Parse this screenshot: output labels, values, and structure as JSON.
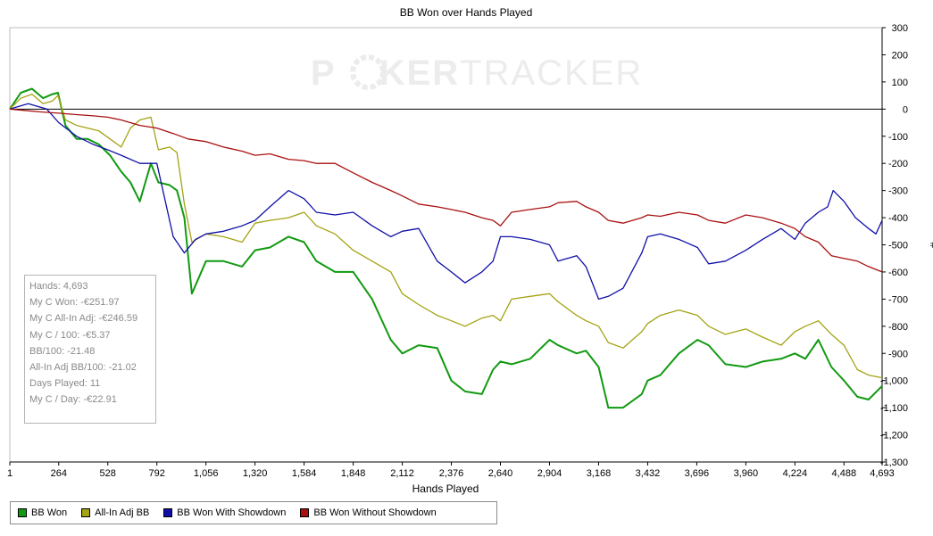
{
  "chart_data": {
    "type": "line",
    "title": "BB Won over Hands Played",
    "xlabel": "Hands Played",
    "ylabel": "#",
    "xlim": [
      1,
      4693
    ],
    "ylim": [
      -1300,
      300
    ],
    "x_ticks": [
      1,
      264,
      528,
      792,
      1056,
      1320,
      1584,
      1848,
      2112,
      2376,
      2640,
      2904,
      3168,
      3432,
      3696,
      3960,
      4224,
      4488,
      4693
    ],
    "x_tick_labels": [
      "1",
      "264",
      "528",
      "792",
      "1,056",
      "1,320",
      "1,584",
      "1,848",
      "2,112",
      "2,376",
      "2,640",
      "2,904",
      "3,168",
      "3,432",
      "3,696",
      "3,960",
      "4,224",
      "4,488",
      "4,693"
    ],
    "y_ticks": [
      300,
      200,
      100,
      0,
      -100,
      -200,
      -300,
      -400,
      -500,
      -600,
      -700,
      -800,
      -900,
      -1000,
      -1100,
      -1200,
      -1300
    ],
    "y_tick_labels": [
      "300",
      "200",
      "100",
      "0",
      "-100",
      "-200",
      "-300",
      "-400",
      "-500",
      "-600",
      "-700",
      "-800",
      "-900",
      "-1,000",
      "-1,100",
      "-1,200",
      "-1,300"
    ],
    "grid": false,
    "legend_position": "bottom-left",
    "series": [
      {
        "name": "BB Won",
        "color": "#119a11",
        "x": [
          1,
          60,
          120,
          180,
          230,
          260,
          300,
          360,
          420,
          480,
          540,
          600,
          650,
          700,
          760,
          800,
          860,
          900,
          940,
          980,
          1056,
          1150,
          1250,
          1320,
          1400,
          1500,
          1584,
          1650,
          1750,
          1848,
          1950,
          2050,
          2112,
          2200,
          2300,
          2376,
          2450,
          2540,
          2600,
          2640,
          2700,
          2800,
          2904,
          2950,
          3050,
          3100,
          3168,
          3220,
          3300,
          3400,
          3432,
          3500,
          3600,
          3700,
          3760,
          3850,
          3960,
          4050,
          4150,
          4224,
          4280,
          4350,
          4420,
          4488,
          4560,
          4620,
          4693
        ],
        "y": [
          0,
          60,
          75,
          40,
          55,
          60,
          -60,
          -110,
          -110,
          -130,
          -170,
          -230,
          -270,
          -340,
          -200,
          -270,
          -280,
          -300,
          -400,
          -680,
          -560,
          -560,
          -580,
          -520,
          -510,
          -470,
          -490,
          -560,
          -600,
          -600,
          -700,
          -850,
          -900,
          -870,
          -880,
          -1000,
          -1040,
          -1050,
          -960,
          -930,
          -940,
          -920,
          -850,
          -870,
          -900,
          -890,
          -950,
          -1100,
          -1100,
          -1050,
          -1000,
          -980,
          -900,
          -850,
          -870,
          -940,
          -950,
          -930,
          -920,
          -900,
          -920,
          -850,
          -950,
          -1000,
          -1060,
          -1070,
          -1020
        ]
      },
      {
        "name": "All-In Adj BB",
        "color": "#a3a313",
        "x": [
          1,
          60,
          120,
          180,
          230,
          260,
          300,
          360,
          420,
          480,
          540,
          600,
          650,
          700,
          760,
          800,
          860,
          900,
          940,
          980,
          1056,
          1150,
          1250,
          1320,
          1400,
          1500,
          1584,
          1650,
          1750,
          1848,
          1950,
          2050,
          2112,
          2200,
          2300,
          2376,
          2450,
          2540,
          2600,
          2640,
          2700,
          2800,
          2904,
          2950,
          3050,
          3100,
          3168,
          3220,
          3300,
          3400,
          3432,
          3500,
          3600,
          3700,
          3760,
          3850,
          3960,
          4050,
          4150,
          4224,
          4280,
          4350,
          4420,
          4488,
          4560,
          4620,
          4693
        ],
        "y": [
          0,
          40,
          55,
          20,
          30,
          50,
          -40,
          -60,
          -70,
          -80,
          -110,
          -140,
          -70,
          -40,
          -30,
          -150,
          -140,
          -160,
          -350,
          -490,
          -460,
          -470,
          -490,
          -420,
          -410,
          -400,
          -380,
          -430,
          -460,
          -520,
          -560,
          -600,
          -680,
          -720,
          -760,
          -780,
          -800,
          -770,
          -760,
          -780,
          -700,
          -690,
          -680,
          -710,
          -760,
          -780,
          -800,
          -860,
          -880,
          -820,
          -790,
          -760,
          -740,
          -760,
          -800,
          -830,
          -810,
          -840,
          -870,
          -820,
          -800,
          -780,
          -830,
          -870,
          -960,
          -980,
          -990
        ]
      },
      {
        "name": "BB Won With Showdown",
        "color": "#1010a8",
        "x": [
          1,
          100,
          200,
          264,
          360,
          450,
          528,
          600,
          700,
          792,
          880,
          940,
          1000,
          1056,
          1150,
          1250,
          1320,
          1400,
          1450,
          1500,
          1584,
          1650,
          1750,
          1848,
          1950,
          2050,
          2112,
          2200,
          2300,
          2376,
          2450,
          2540,
          2600,
          2640,
          2700,
          2800,
          2904,
          2950,
          3050,
          3100,
          3168,
          3220,
          3300,
          3400,
          3432,
          3500,
          3600,
          3700,
          3760,
          3850,
          3960,
          4050,
          4150,
          4224,
          4280,
          4350,
          4400,
          4430,
          4488,
          4550,
          4620,
          4660,
          4693
        ],
        "y": [
          0,
          20,
          0,
          -50,
          -100,
          -130,
          -150,
          -170,
          -200,
          -200,
          -470,
          -530,
          -480,
          -460,
          -450,
          -430,
          -410,
          -360,
          -330,
          -300,
          -330,
          -380,
          -390,
          -380,
          -430,
          -470,
          -450,
          -440,
          -560,
          -600,
          -640,
          -600,
          -560,
          -470,
          -470,
          -480,
          -500,
          -560,
          -540,
          -580,
          -700,
          -690,
          -660,
          -530,
          -470,
          -460,
          -480,
          -510,
          -570,
          -560,
          -520,
          -480,
          -440,
          -480,
          -420,
          -380,
          -360,
          -300,
          -340,
          -400,
          -440,
          -460,
          -410
        ]
      },
      {
        "name": "BB Won Without Showdown",
        "color": "#a81010",
        "x": [
          1,
          80,
          160,
          264,
          350,
          450,
          528,
          600,
          700,
          792,
          880,
          960,
          1056,
          1150,
          1250,
          1320,
          1400,
          1500,
          1584,
          1650,
          1750,
          1848,
          1950,
          2050,
          2112,
          2200,
          2300,
          2376,
          2450,
          2540,
          2600,
          2640,
          2700,
          2800,
          2904,
          2950,
          3050,
          3100,
          3168,
          3220,
          3300,
          3400,
          3432,
          3500,
          3600,
          3700,
          3760,
          3850,
          3960,
          4050,
          4150,
          4224,
          4280,
          4350,
          4420,
          4488,
          4560,
          4620,
          4693
        ],
        "y": [
          0,
          -5,
          -10,
          -15,
          -20,
          -25,
          -30,
          -40,
          -60,
          -70,
          -90,
          -110,
          -120,
          -140,
          -155,
          -170,
          -165,
          -185,
          -190,
          -200,
          -200,
          -235,
          -270,
          -300,
          -320,
          -350,
          -360,
          -370,
          -380,
          -400,
          -410,
          -430,
          -380,
          -370,
          -360,
          -345,
          -340,
          -360,
          -380,
          -410,
          -420,
          -400,
          -390,
          -395,
          -380,
          -390,
          -410,
          -420,
          -390,
          -400,
          -420,
          -440,
          -470,
          -490,
          -540,
          -550,
          -560,
          -580,
          -600
        ]
      }
    ]
  },
  "watermark": {
    "part1": "P",
    "part2": "KER",
    "part3": "TRACKER"
  },
  "stats_box": {
    "lines": [
      "Hands: 4,693",
      "My C Won: -€251.97",
      "My C All-In Adj: -€246.59",
      "My C / 100: -€5.37",
      "BB/100: -21.48",
      "All-In Adj BB/100: -21.02",
      "Days Played: 11",
      "My C / Day: -€22.91"
    ]
  },
  "legend": {
    "items": [
      {
        "label": "BB Won",
        "color": "#119a11"
      },
      {
        "label": "All-In Adj BB",
        "color": "#a3a313"
      },
      {
        "label": "BB Won With Showdown",
        "color": "#1010a8"
      },
      {
        "label": "BB Won Without Showdown",
        "color": "#a81010"
      }
    ]
  }
}
